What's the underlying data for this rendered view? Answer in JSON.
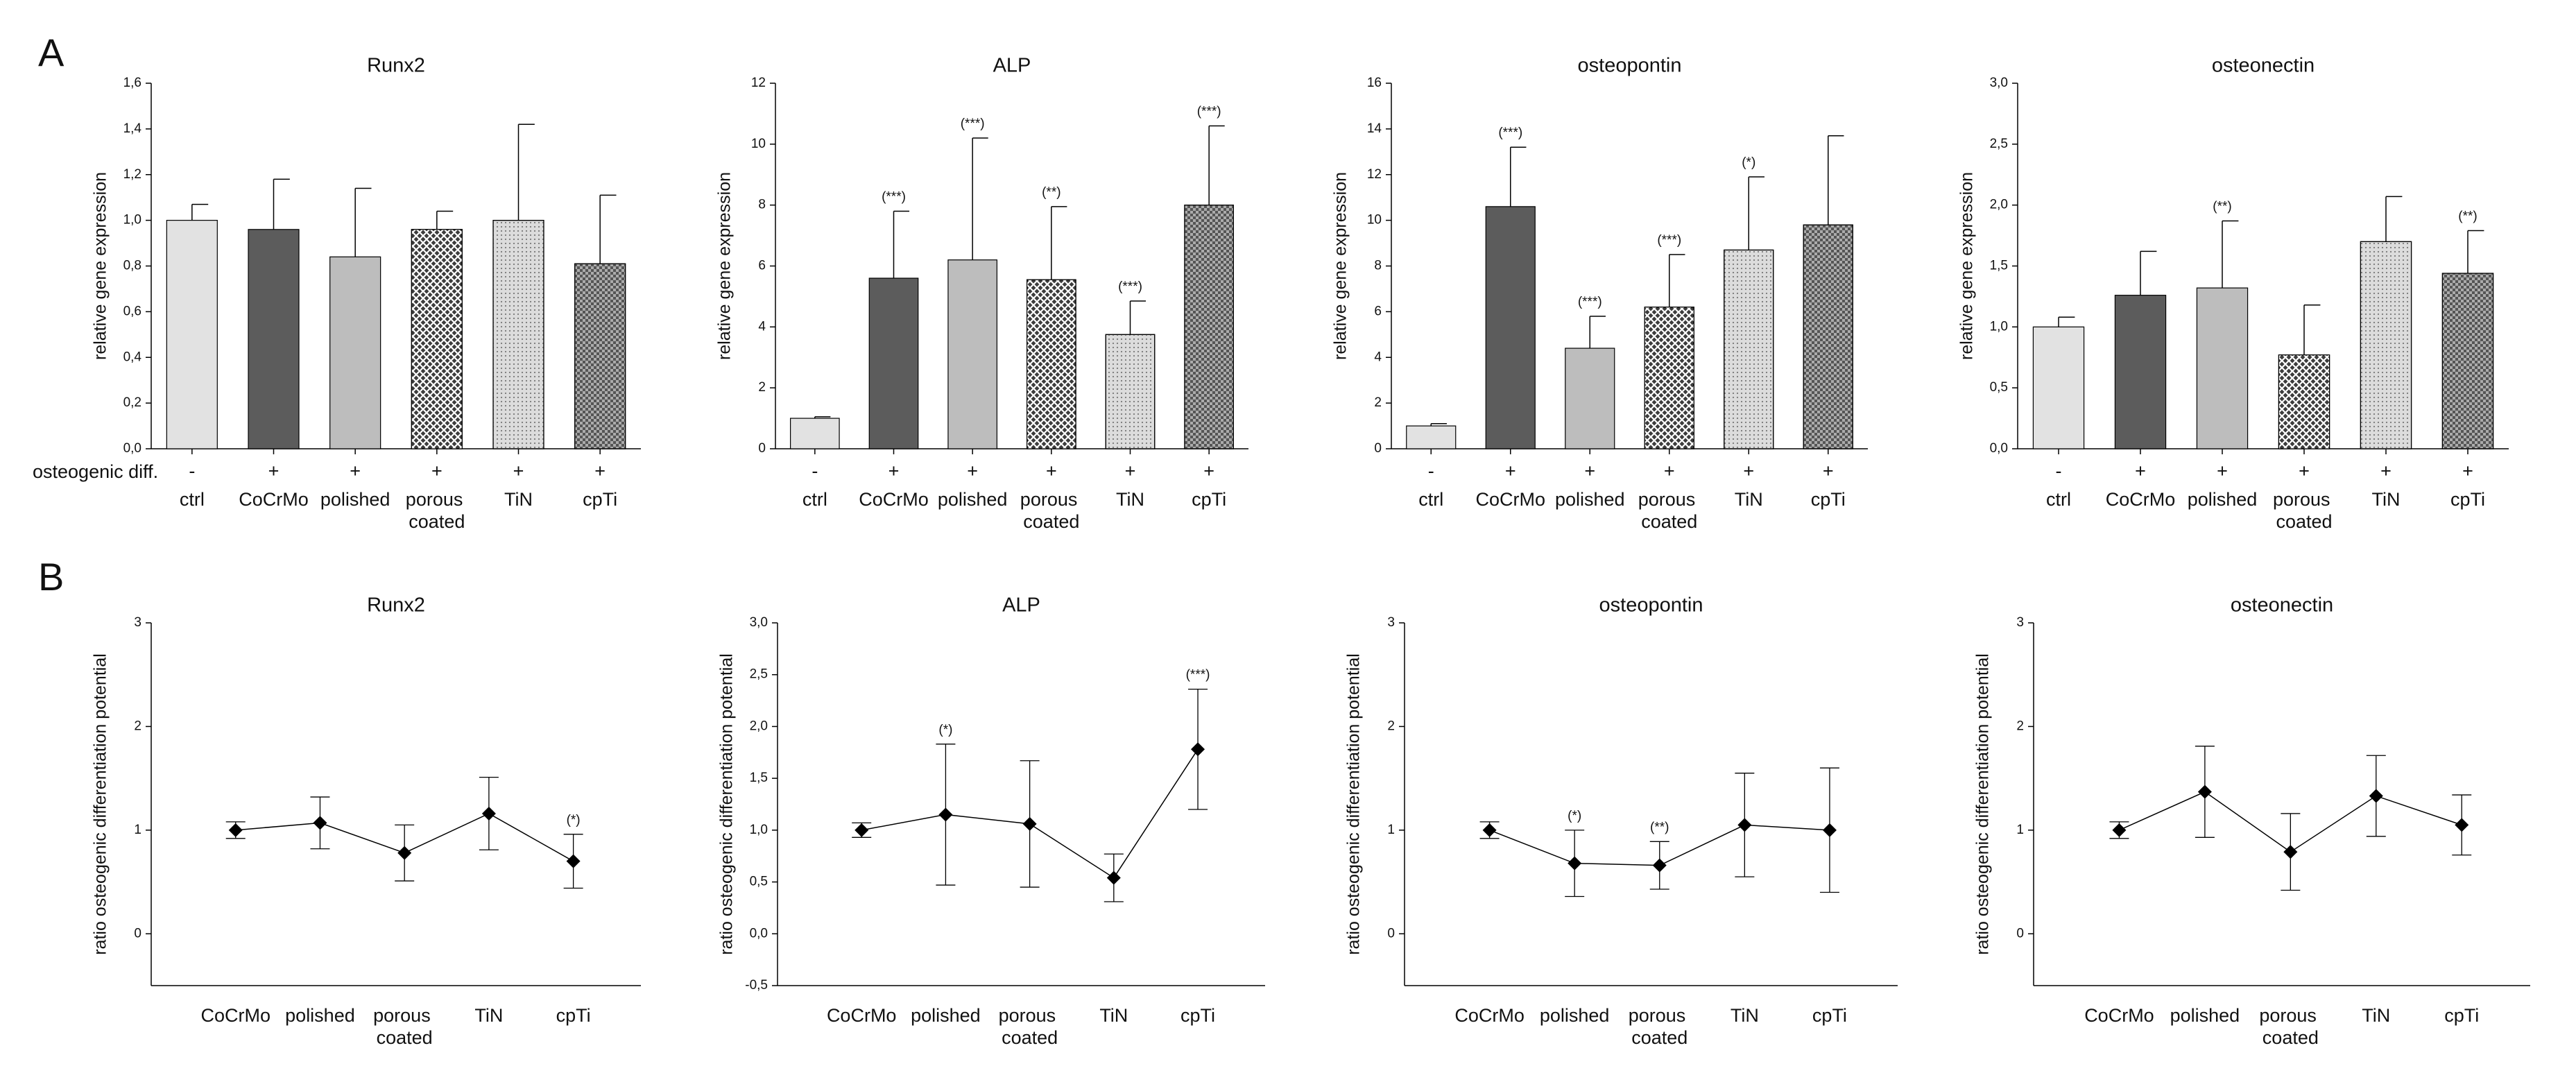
{
  "panels": [
    "A",
    "B"
  ],
  "row_label": "osteogenic diff.",
  "chart_data": [
    {
      "type": "bar",
      "title": "Runx2",
      "ylabel": "relative gene expression",
      "categories": [
        "ctrl",
        "CoCrMo",
        "polished",
        "porous coated",
        "TiN",
        "cpTi"
      ],
      "treatment": [
        "-",
        "+",
        "+",
        "+",
        "+",
        "+"
      ],
      "values": [
        1.0,
        0.96,
        0.84,
        0.96,
        1.0,
        0.81
      ],
      "errors": [
        0.07,
        0.22,
        0.3,
        0.08,
        0.42,
        0.3
      ],
      "colors": [
        "#e2e2e2",
        "#5c5c5c",
        "#bdbdbd",
        "#3c3c3c",
        "#dcdcdc",
        "#ababab"
      ],
      "patterns": [
        "solid",
        "solid",
        "solid",
        "crosshatch",
        "dots",
        "checker"
      ],
      "ylim": [
        0,
        1.6
      ],
      "yticks": [
        {
          "value": 0,
          "label": "0,0"
        },
        {
          "value": 0.2,
          "label": "0,2"
        },
        {
          "value": 0.4,
          "label": "0,4"
        },
        {
          "value": 0.6,
          "label": "0,6"
        },
        {
          "value": 0.8,
          "label": "0,8"
        },
        {
          "value": 1.0,
          "label": "1,0"
        },
        {
          "value": 1.2,
          "label": "1,2"
        },
        {
          "value": 1.4,
          "label": "1,4"
        },
        {
          "value": 1.6,
          "label": "1,6"
        }
      ]
    },
    {
      "type": "bar",
      "title": "ALP",
      "ylabel": "relative gene expression",
      "categories": [
        "ctrl",
        "CoCrMo",
        "polished",
        "porous coated",
        "TiN",
        "cpTi"
      ],
      "treatment": [
        "-",
        "+",
        "+",
        "+",
        "+",
        "+"
      ],
      "values": [
        1.0,
        5.6,
        6.2,
        5.55,
        3.75,
        8.0
      ],
      "errors": [
        0.05,
        2.2,
        4.0,
        2.4,
        1.1,
        2.6
      ],
      "annotations": [
        null,
        "(***)",
        "(***)",
        "(**)",
        "(***)",
        "(***)"
      ],
      "colors": [
        "#e2e2e2",
        "#5c5c5c",
        "#bdbdbd",
        "#3c3c3c",
        "#dcdcdc",
        "#ababab"
      ],
      "patterns": [
        "solid",
        "solid",
        "solid",
        "crosshatch",
        "dots",
        "checker"
      ],
      "ylim": [
        0,
        12
      ],
      "yticks": [
        0,
        2,
        4,
        6,
        8,
        10,
        12
      ]
    },
    {
      "type": "bar",
      "title": "osteopontin",
      "ylabel": "relative gene expression",
      "categories": [
        "ctrl",
        "CoCrMo",
        "polished",
        "porous coated",
        "TiN",
        "cpTi"
      ],
      "treatment": [
        "-",
        "+",
        "+",
        "+",
        "+",
        "+"
      ],
      "values": [
        1.0,
        10.6,
        4.4,
        6.2,
        8.7,
        9.8
      ],
      "errors": [
        0.1,
        2.6,
        1.4,
        2.3,
        3.2,
        3.9
      ],
      "annotations": [
        null,
        "(***)",
        "(***)",
        "(***)",
        "(*)",
        null
      ],
      "colors": [
        "#e2e2e2",
        "#5c5c5c",
        "#bdbdbd",
        "#3c3c3c",
        "#dcdcdc",
        "#ababab"
      ],
      "patterns": [
        "solid",
        "solid",
        "solid",
        "crosshatch",
        "dots",
        "checker"
      ],
      "ylim": [
        0,
        16
      ],
      "yticks": [
        0,
        2,
        4,
        6,
        8,
        10,
        12,
        14,
        16
      ]
    },
    {
      "type": "bar",
      "title": "osteonectin",
      "ylabel": "relative gene expression",
      "categories": [
        "ctrl",
        "CoCrMo",
        "polished",
        "porous coated",
        "TiN",
        "cpTi"
      ],
      "treatment": [
        "-",
        "+",
        "+",
        "+",
        "+",
        "+"
      ],
      "values": [
        1.0,
        1.26,
        1.32,
        0.77,
        1.7,
        1.44
      ],
      "errors": [
        0.08,
        0.36,
        0.55,
        0.41,
        0.37,
        0.35
      ],
      "annotations": [
        null,
        null,
        "(**)",
        null,
        null,
        "(**)"
      ],
      "colors": [
        "#e2e2e2",
        "#5c5c5c",
        "#bdbdbd",
        "#3c3c3c",
        "#dcdcdc",
        "#ababab"
      ],
      "patterns": [
        "solid",
        "solid",
        "solid",
        "crosshatch",
        "dots",
        "checker"
      ],
      "ylim": [
        0,
        3.0
      ],
      "yticks": [
        {
          "value": 0,
          "label": "0,0"
        },
        {
          "value": 0.5,
          "label": "0,5"
        },
        {
          "value": 1.0,
          "label": "1,0"
        },
        {
          "value": 1.5,
          "label": "1,5"
        },
        {
          "value": 2.0,
          "label": "2,0"
        },
        {
          "value": 2.5,
          "label": "2,5"
        },
        {
          "value": 3.0,
          "label": "3,0"
        }
      ]
    },
    {
      "type": "line",
      "title": "Runx2",
      "ylabel": "ratio osteogenic differentiation potential",
      "categories": [
        "CoCrMo",
        "polished",
        "porous coated",
        "TiN",
        "cpTi"
      ],
      "values": [
        1.0,
        1.07,
        0.78,
        1.16,
        0.7
      ],
      "errors": [
        0.08,
        0.25,
        0.27,
        0.35,
        0.26
      ],
      "annotations": [
        null,
        null,
        null,
        null,
        "(*)"
      ],
      "color": "#000000",
      "ylim": [
        -0.5,
        3
      ],
      "yticks": [
        0,
        1,
        2,
        3
      ]
    },
    {
      "type": "line",
      "title": "ALP",
      "ylabel": "ratio osteogenic differentiation potential",
      "categories": [
        "CoCrMo",
        "polished",
        "porous coated",
        "TiN",
        "cpTi"
      ],
      "values": [
        1.0,
        1.15,
        1.06,
        0.54,
        1.78
      ],
      "errors": [
        0.07,
        0.68,
        0.61,
        0.23,
        0.58
      ],
      "annotations": [
        null,
        "(*)",
        null,
        null,
        "(***)"
      ],
      "color": "#000000",
      "ylim": [
        -0.5,
        3.0
      ],
      "yticks": [
        {
          "value": -0.5,
          "label": "-0,5"
        },
        {
          "value": 0,
          "label": "0,0"
        },
        {
          "value": 0.5,
          "label": "0,5"
        },
        {
          "value": 1.0,
          "label": "1,0"
        },
        {
          "value": 1.5,
          "label": "1,5"
        },
        {
          "value": 2.0,
          "label": "2,0"
        },
        {
          "value": 2.5,
          "label": "2,5"
        },
        {
          "value": 3.0,
          "label": "3,0"
        }
      ]
    },
    {
      "type": "line",
      "title": "osteopontin",
      "ylabel": "ratio osteogenic differentiation potential",
      "categories": [
        "CoCrMo",
        "polished",
        "porous coated",
        "TiN",
        "cpTi"
      ],
      "values": [
        1.0,
        0.68,
        0.66,
        1.05,
        1.0
      ],
      "errors": [
        0.08,
        0.32,
        0.23,
        0.5,
        0.6
      ],
      "annotations": [
        null,
        "(*)",
        "(**)",
        null,
        null
      ],
      "color": "#000000",
      "ylim": [
        -0.5,
        3
      ],
      "yticks": [
        0,
        1,
        2,
        3
      ]
    },
    {
      "type": "line",
      "title": "osteonectin",
      "ylabel": "ratio osteogenic differentiation potential",
      "categories": [
        "CoCrMo",
        "polished",
        "porous coated",
        "TiN",
        "cpTi"
      ],
      "values": [
        1.0,
        1.37,
        0.79,
        1.33,
        1.05
      ],
      "errors": [
        0.08,
        0.44,
        0.37,
        0.39,
        0.29
      ],
      "color": "#000000",
      "ylim": [
        -0.5,
        3
      ],
      "yticks": [
        0,
        1,
        2,
        3
      ]
    }
  ]
}
